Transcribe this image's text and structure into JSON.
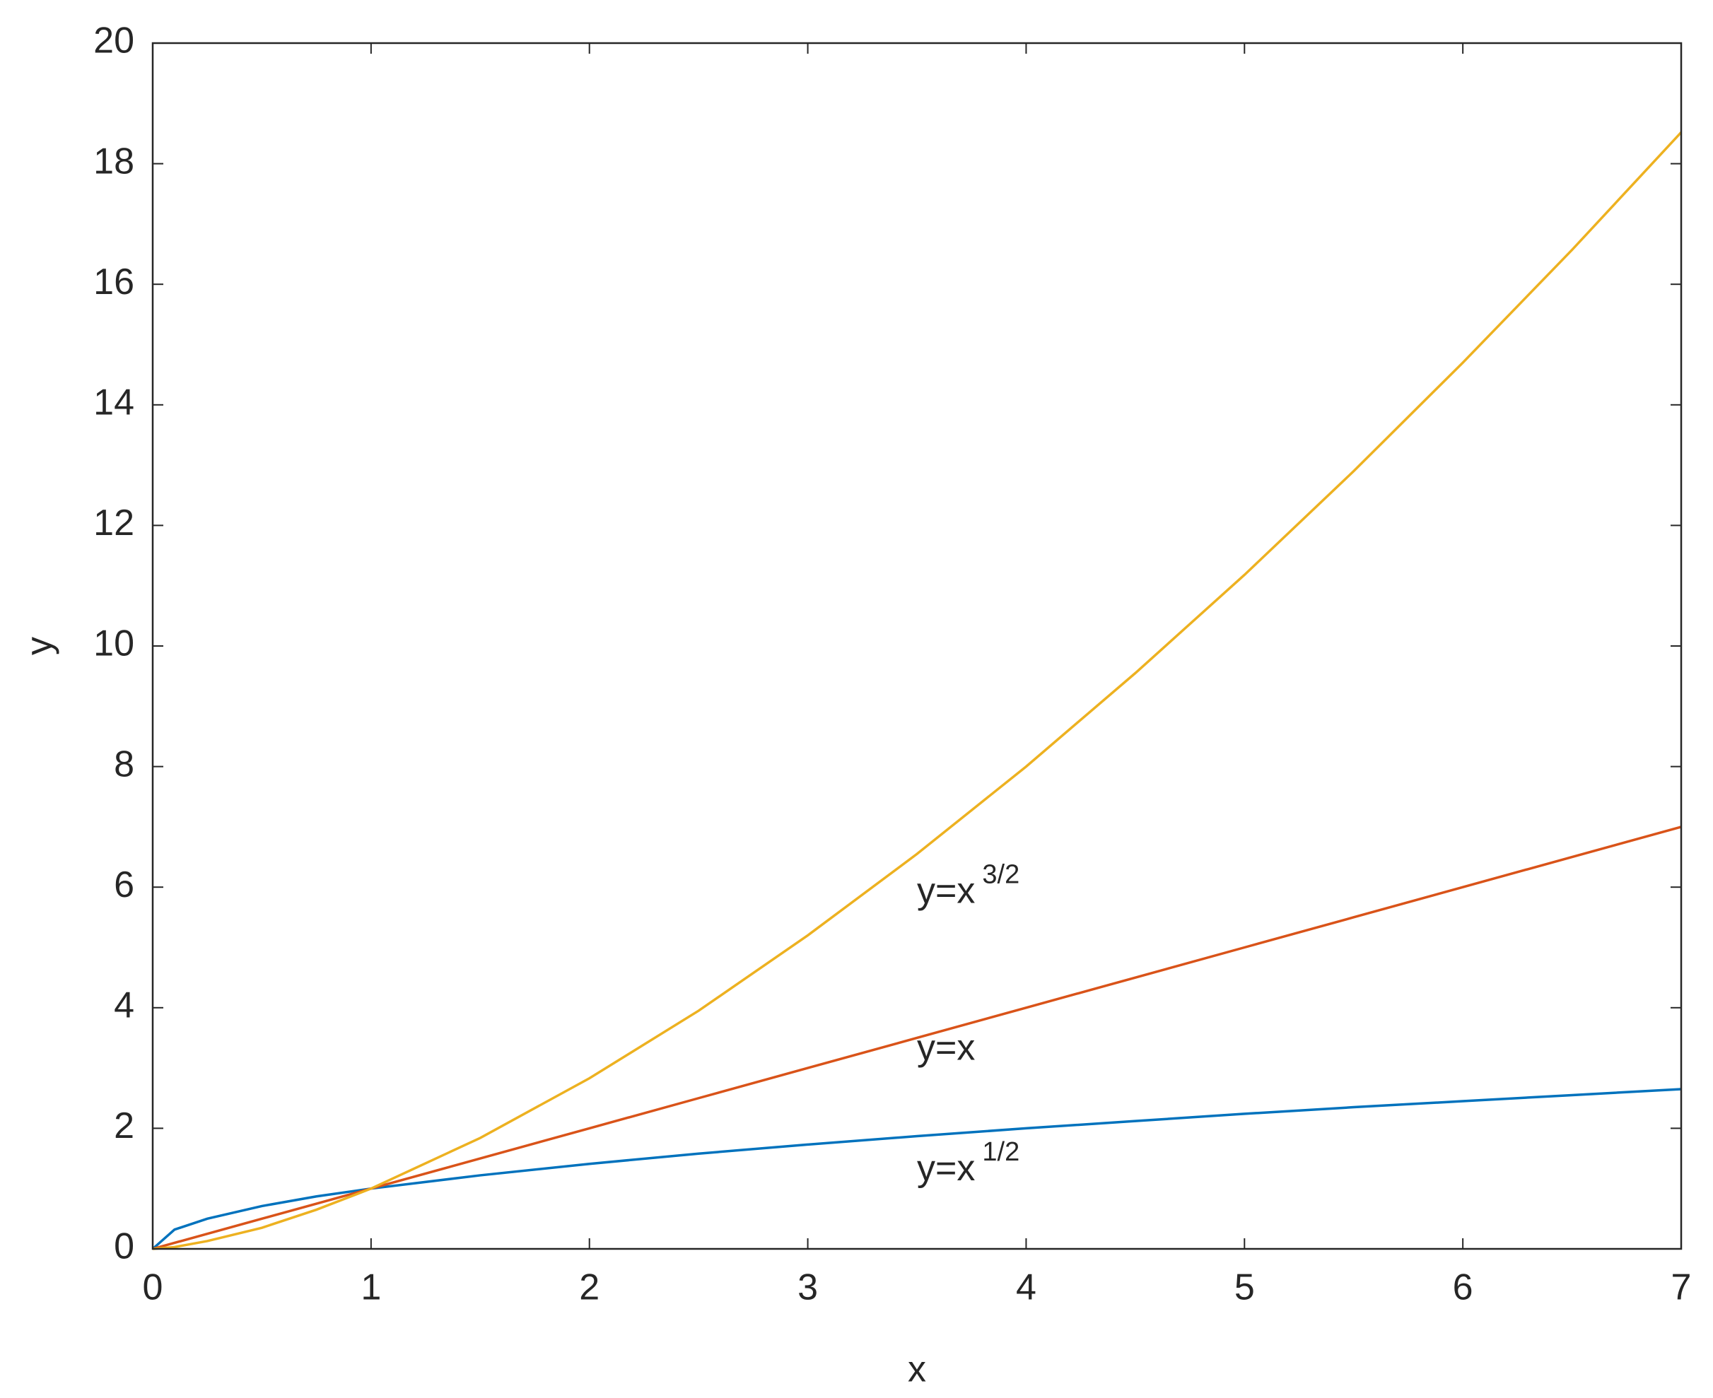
{
  "chart_data": {
    "type": "line",
    "x_label": "x",
    "y_label": "y",
    "x": [
      0,
      0.1,
      0.25,
      0.5,
      0.75,
      1,
      1.5,
      2,
      2.5,
      3,
      3.5,
      4,
      4.5,
      5,
      5.5,
      6,
      6.5,
      7
    ],
    "series": [
      {
        "color": "#0072BD",
        "values": [
          0,
          0.32,
          0.5,
          0.71,
          0.87,
          1,
          1.22,
          1.41,
          1.58,
          1.73,
          1.87,
          2,
          2.12,
          2.24,
          2.35,
          2.45,
          2.55,
          2.65
        ]
      },
      {
        "color": "#D95319",
        "values": [
          0,
          0.1,
          0.25,
          0.5,
          0.75,
          1,
          1.5,
          2,
          2.5,
          3,
          3.5,
          4,
          4.5,
          5,
          5.5,
          6,
          6.5,
          7
        ]
      },
      {
        "color": "#EDB120",
        "values": [
          0,
          0.03,
          0.13,
          0.35,
          0.65,
          1,
          1.84,
          2.83,
          3.95,
          5.2,
          6.55,
          8,
          9.55,
          11.18,
          12.9,
          14.7,
          16.57,
          18.52
        ]
      }
    ],
    "annotations": [
      {
        "text": "y=x",
        "sup": "3/2"
      },
      {
        "text": "y=x"
      },
      {
        "text": "y=x",
        "sup": "1/2"
      }
    ],
    "xlim": [
      0,
      7
    ],
    "xticks": [
      0,
      1,
      2,
      3,
      4,
      5,
      6,
      7
    ],
    "ylim": [
      0,
      20
    ],
    "yticks": [
      0,
      2,
      4,
      6,
      8,
      10,
      12,
      14,
      16,
      18,
      20
    ],
    "grid": false
  }
}
